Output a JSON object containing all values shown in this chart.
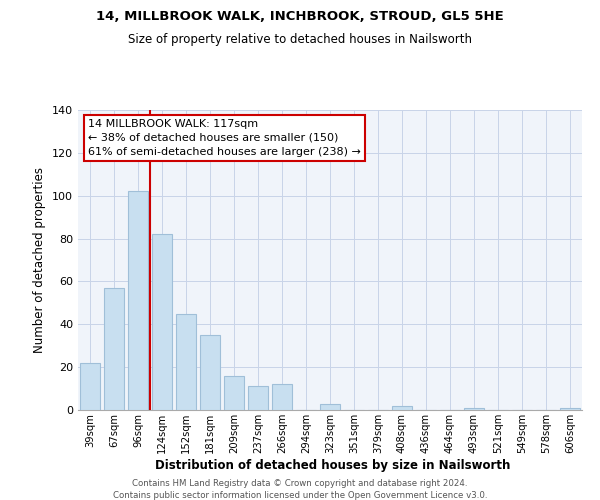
{
  "title_line1": "14, MILLBROOK WALK, INCHBROOK, STROUD, GL5 5HE",
  "title_line2": "Size of property relative to detached houses in Nailsworth",
  "xlabel": "Distribution of detached houses by size in Nailsworth",
  "ylabel": "Number of detached properties",
  "bar_labels": [
    "39sqm",
    "67sqm",
    "96sqm",
    "124sqm",
    "152sqm",
    "181sqm",
    "209sqm",
    "237sqm",
    "266sqm",
    "294sqm",
    "323sqm",
    "351sqm",
    "379sqm",
    "408sqm",
    "436sqm",
    "464sqm",
    "493sqm",
    "521sqm",
    "549sqm",
    "578sqm",
    "606sqm"
  ],
  "bar_values": [
    22,
    57,
    102,
    82,
    45,
    35,
    16,
    11,
    12,
    0,
    3,
    0,
    0,
    2,
    0,
    0,
    1,
    0,
    0,
    0,
    1
  ],
  "bar_color": "#c8dff0",
  "bar_edge_color": "#a0bfd8",
  "vline_color": "#cc0000",
  "ylim": [
    0,
    140
  ],
  "yticks": [
    0,
    20,
    40,
    60,
    80,
    100,
    120,
    140
  ],
  "annotation_text": "14 MILLBROOK WALK: 117sqm\n← 38% of detached houses are smaller (150)\n61% of semi-detached houses are larger (238) →",
  "annotation_box_color": "#ffffff",
  "annotation_box_edge": "#cc0000",
  "footer_line1": "Contains HM Land Registry data © Crown copyright and database right 2024.",
  "footer_line2": "Contains public sector information licensed under the Open Government Licence v3.0.",
  "bg_color": "#f0f4fa"
}
